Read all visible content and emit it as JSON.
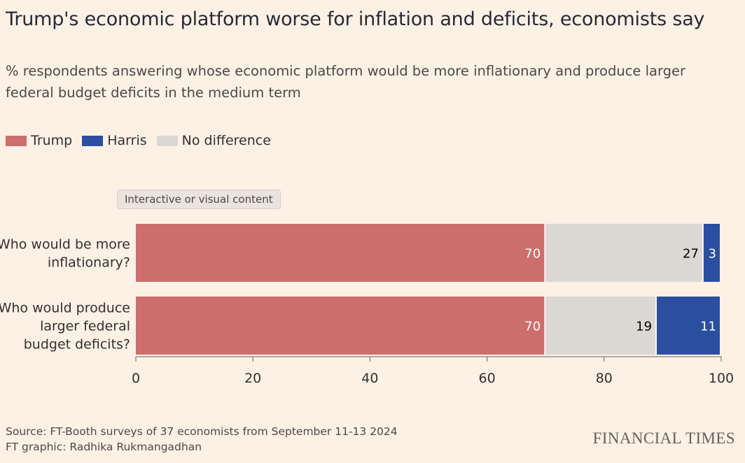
{
  "header": {
    "title": "Trump's economic platform worse for inflation and deficits, economists say",
    "subtitle": "% respondents answering whose economic platform would be more inflationary and produce larger federal budget deficits in the medium term"
  },
  "legend": [
    {
      "label": "Trump",
      "color": "#cc6e6b"
    },
    {
      "label": "Harris",
      "color": "#2a4fa0"
    },
    {
      "label": "No difference",
      "color": "#dbd8d4"
    }
  ],
  "tooltip": "Interactive or visual content",
  "chart_data": {
    "type": "bar",
    "orientation": "horizontal",
    "stacked": true,
    "categories": [
      [
        "Who would be more",
        "inflationary?"
      ],
      [
        "Who would produce",
        "larger federal",
        "budget deficits?"
      ]
    ],
    "series": [
      {
        "name": "Trump",
        "color": "#cc6e6b",
        "label_color": "#ffffff",
        "values": [
          70,
          70
        ]
      },
      {
        "name": "No difference",
        "color": "#dbd8d4",
        "label_color": "#000000",
        "values": [
          27,
          19
        ]
      },
      {
        "name": "Harris",
        "color": "#2a4fa0",
        "label_color": "#ffffff",
        "values": [
          3,
          11
        ]
      }
    ],
    "xlim": [
      0,
      100
    ],
    "xticks": [
      0,
      20,
      40,
      60,
      80,
      100
    ],
    "grid": false,
    "legend_position": "top-left"
  },
  "footer": {
    "source": "Source: FT-Booth surveys of 37 economists from September 11-13 2024",
    "credit": "FT graphic: Radhika Rukmangadhan",
    "brand": "FINANCIAL TIMES"
  }
}
